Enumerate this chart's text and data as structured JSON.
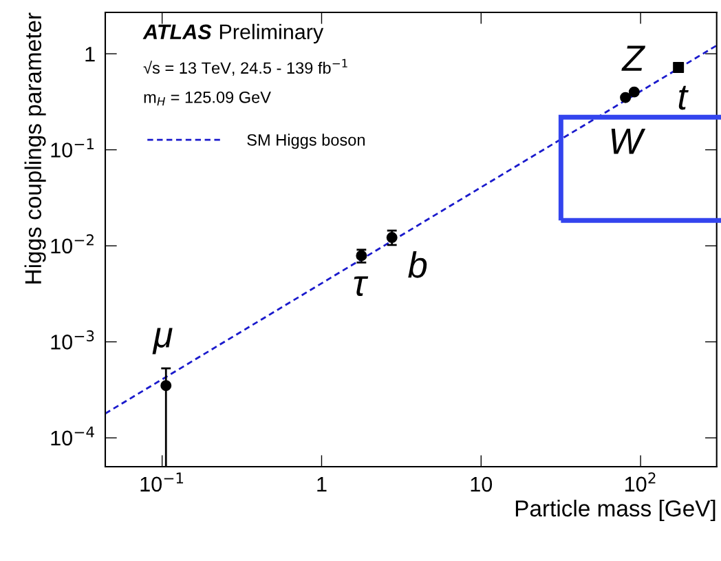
{
  "chart_data": {
    "type": "scatter",
    "xlabel": "Particle mass [GeV]",
    "ylabel": "Higgs couplings parameter",
    "log": "xy",
    "xlim": [
      0.044,
      300
    ],
    "ylim": [
      5e-05,
      2.7
    ],
    "xticks": [
      {
        "value": 0.1,
        "label": "10$^{−1}$"
      },
      1,
      10,
      {
        "value": 100,
        "label": "10$^{2}$"
      }
    ],
    "yticks": [
      {
        "value": 0.0001,
        "label": "10$^{−4}$"
      },
      {
        "value": 0.001,
        "label": "10$^{−3}$"
      },
      {
        "value": 0.01,
        "label": "10$^{−2}$"
      },
      {
        "value": 0.1,
        "label": "10$^{−1}$"
      },
      1
    ],
    "grid": false,
    "legend": "top left",
    "series": [
      {
        "type": "line",
        "name": "SM Higgs boson",
        "color": "#1a1acc",
        "line_style": "dashed",
        "marker": "none",
        "x": [
          0.044,
          300
        ],
        "values": [
          0.000179,
          1.22
        ]
      },
      {
        "color": "#000000",
        "marker": "circle",
        "x": [
          0.1057,
          1.777,
          2.76,
          80.4,
          91.2
        ],
        "values": [
          0.00035,
          0.0079,
          0.0122,
          0.35,
          0.4
        ],
        "errors": [
          [
            5e-05,
            0.00053
          ],
          [
            0.0067,
            0.0091
          ],
          [
            0.0102,
            0.0144
          ],
          null,
          null
        ]
      },
      {
        "color": "#000000",
        "marker": "square",
        "x": [
          172.8
        ],
        "values": [
          0.72
        ]
      }
    ],
    "annotations": [
      "ATLAS",
      "Preliminary",
      "√s = 13 TeV, 24.5 - 139 fb$^{−1}$",
      "m$_{H}$ = 125.09 GeV",
      {
        "text": "μ",
        "x": 0.1057,
        "y": 0.00035
      },
      {
        "text": "τ",
        "x": 1.777,
        "y": 0.0079
      },
      {
        "text": "b",
        "x": 2.76,
        "y": 0.0122
      },
      {
        "text": "W",
        "x": 80.4,
        "y": 0.35
      },
      {
        "text": "Z",
        "x": 91.2,
        "y": 0.4
      },
      {
        "text": "t",
        "x": 172.8,
        "y": 0.72
      }
    ]
  }
}
